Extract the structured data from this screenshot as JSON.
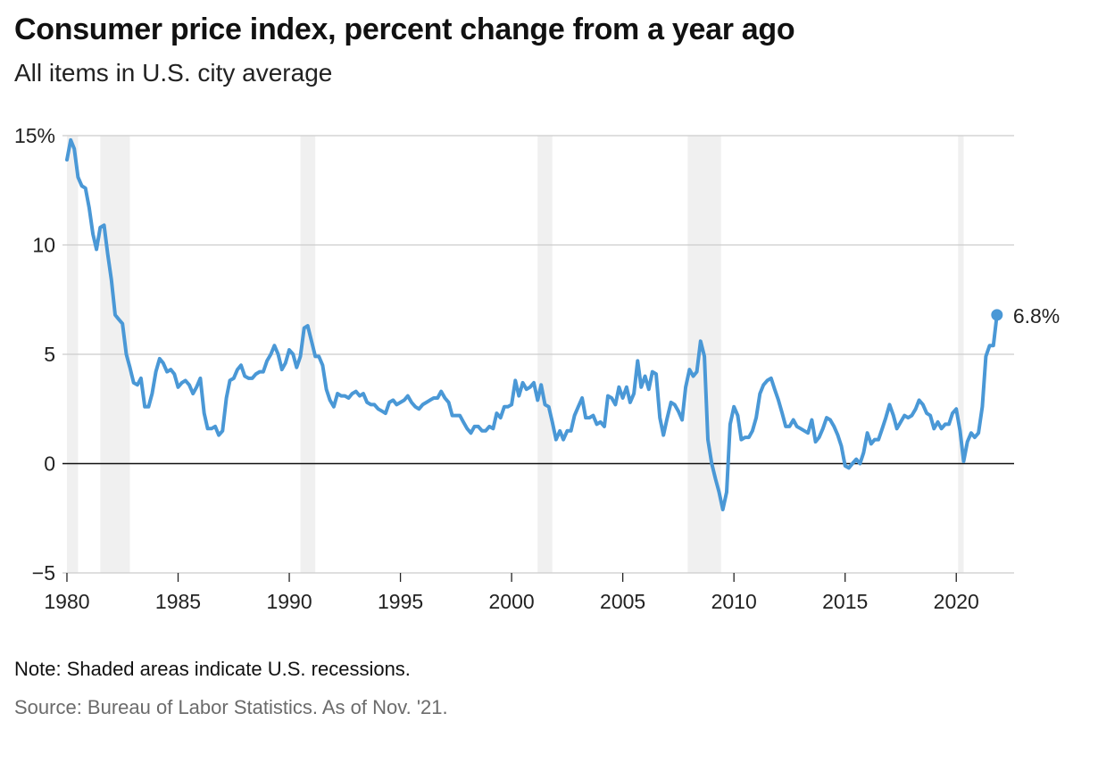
{
  "chart_data": {
    "type": "line",
    "title": "Consumer price index, percent change from a year ago",
    "subtitle": "All items in U.S. city average",
    "xlabel": "",
    "ylabel": "",
    "xlim": [
      1979.8,
      2022.6
    ],
    "ylim": [
      -5,
      15
    ],
    "x_ticks": [
      1980,
      1985,
      1990,
      1995,
      2000,
      2005,
      2010,
      2015,
      2020
    ],
    "y_ticks": [
      -5,
      0,
      5,
      10,
      15
    ],
    "y_tick_labels": [
      "−5",
      "0",
      "5",
      "10",
      "15%"
    ],
    "recessions": [
      [
        1980.0,
        1980.5
      ],
      [
        1981.5,
        1982.83
      ],
      [
        1990.5,
        1991.17
      ],
      [
        2001.17,
        2001.83
      ],
      [
        2007.92,
        2009.42
      ],
      [
        2020.08,
        2020.33
      ]
    ],
    "series": [
      {
        "name": "CPI, all items, U.S. city average, % change from a year ago",
        "color": "#4a98d6",
        "points": [
          [
            1980.0,
            13.9
          ],
          [
            1980.17,
            14.8
          ],
          [
            1980.33,
            14.4
          ],
          [
            1980.5,
            13.1
          ],
          [
            1980.67,
            12.7
          ],
          [
            1980.83,
            12.6
          ],
          [
            1981.0,
            11.7
          ],
          [
            1981.17,
            10.5
          ],
          [
            1981.33,
            9.8
          ],
          [
            1981.5,
            10.8
          ],
          [
            1981.67,
            10.9
          ],
          [
            1981.83,
            9.6
          ],
          [
            1982.0,
            8.4
          ],
          [
            1982.17,
            6.8
          ],
          [
            1982.33,
            6.6
          ],
          [
            1982.5,
            6.4
          ],
          [
            1982.67,
            5.0
          ],
          [
            1982.83,
            4.4
          ],
          [
            1983.0,
            3.7
          ],
          [
            1983.17,
            3.6
          ],
          [
            1983.33,
            3.9
          ],
          [
            1983.5,
            2.6
          ],
          [
            1983.67,
            2.6
          ],
          [
            1983.83,
            3.2
          ],
          [
            1984.0,
            4.2
          ],
          [
            1984.17,
            4.8
          ],
          [
            1984.33,
            4.6
          ],
          [
            1984.5,
            4.2
          ],
          [
            1984.67,
            4.3
          ],
          [
            1984.83,
            4.1
          ],
          [
            1985.0,
            3.5
          ],
          [
            1985.17,
            3.7
          ],
          [
            1985.33,
            3.8
          ],
          [
            1985.5,
            3.6
          ],
          [
            1985.67,
            3.2
          ],
          [
            1985.83,
            3.5
          ],
          [
            1986.0,
            3.9
          ],
          [
            1986.17,
            2.3
          ],
          [
            1986.33,
            1.6
          ],
          [
            1986.5,
            1.6
          ],
          [
            1986.67,
            1.7
          ],
          [
            1986.83,
            1.3
          ],
          [
            1987.0,
            1.5
          ],
          [
            1987.17,
            3.0
          ],
          [
            1987.33,
            3.8
          ],
          [
            1987.5,
            3.9
          ],
          [
            1987.67,
            4.3
          ],
          [
            1987.83,
            4.5
          ],
          [
            1988.0,
            4.0
          ],
          [
            1988.17,
            3.9
          ],
          [
            1988.33,
            3.9
          ],
          [
            1988.5,
            4.1
          ],
          [
            1988.67,
            4.2
          ],
          [
            1988.83,
            4.2
          ],
          [
            1989.0,
            4.7
          ],
          [
            1989.17,
            5.0
          ],
          [
            1989.33,
            5.4
          ],
          [
            1989.5,
            5.0
          ],
          [
            1989.67,
            4.3
          ],
          [
            1989.83,
            4.6
          ],
          [
            1990.0,
            5.2
          ],
          [
            1990.17,
            5.0
          ],
          [
            1990.33,
            4.4
          ],
          [
            1990.5,
            4.9
          ],
          [
            1990.67,
            6.2
          ],
          [
            1990.83,
            6.3
          ],
          [
            1991.0,
            5.6
          ],
          [
            1991.17,
            4.9
          ],
          [
            1991.33,
            4.9
          ],
          [
            1991.5,
            4.5
          ],
          [
            1991.67,
            3.4
          ],
          [
            1991.83,
            2.9
          ],
          [
            1992.0,
            2.6
          ],
          [
            1992.17,
            3.2
          ],
          [
            1992.33,
            3.1
          ],
          [
            1992.5,
            3.1
          ],
          [
            1992.67,
            3.0
          ],
          [
            1992.83,
            3.2
          ],
          [
            1993.0,
            3.3
          ],
          [
            1993.17,
            3.1
          ],
          [
            1993.33,
            3.2
          ],
          [
            1993.5,
            2.8
          ],
          [
            1993.67,
            2.7
          ],
          [
            1993.83,
            2.7
          ],
          [
            1994.0,
            2.5
          ],
          [
            1994.17,
            2.4
          ],
          [
            1994.33,
            2.3
          ],
          [
            1994.5,
            2.8
          ],
          [
            1994.67,
            2.9
          ],
          [
            1994.83,
            2.7
          ],
          [
            1995.0,
            2.8
          ],
          [
            1995.17,
            2.9
          ],
          [
            1995.33,
            3.1
          ],
          [
            1995.5,
            2.8
          ],
          [
            1995.67,
            2.6
          ],
          [
            1995.83,
            2.5
          ],
          [
            1996.0,
            2.7
          ],
          [
            1996.17,
            2.8
          ],
          [
            1996.33,
            2.9
          ],
          [
            1996.5,
            3.0
          ],
          [
            1996.67,
            3.0
          ],
          [
            1996.83,
            3.3
          ],
          [
            1997.0,
            3.0
          ],
          [
            1997.17,
            2.8
          ],
          [
            1997.33,
            2.2
          ],
          [
            1997.5,
            2.2
          ],
          [
            1997.67,
            2.2
          ],
          [
            1997.83,
            1.9
          ],
          [
            1998.0,
            1.6
          ],
          [
            1998.17,
            1.4
          ],
          [
            1998.33,
            1.7
          ],
          [
            1998.5,
            1.7
          ],
          [
            1998.67,
            1.5
          ],
          [
            1998.83,
            1.5
          ],
          [
            1999.0,
            1.7
          ],
          [
            1999.17,
            1.6
          ],
          [
            1999.33,
            2.3
          ],
          [
            1999.5,
            2.1
          ],
          [
            1999.67,
            2.6
          ],
          [
            1999.83,
            2.6
          ],
          [
            2000.0,
            2.7
          ],
          [
            2000.17,
            3.8
          ],
          [
            2000.33,
            3.1
          ],
          [
            2000.5,
            3.7
          ],
          [
            2000.67,
            3.4
          ],
          [
            2000.83,
            3.5
          ],
          [
            2001.0,
            3.7
          ],
          [
            2001.17,
            2.9
          ],
          [
            2001.33,
            3.6
          ],
          [
            2001.5,
            2.7
          ],
          [
            2001.67,
            2.6
          ],
          [
            2001.83,
            1.9
          ],
          [
            2002.0,
            1.1
          ],
          [
            2002.17,
            1.5
          ],
          [
            2002.33,
            1.1
          ],
          [
            2002.5,
            1.5
          ],
          [
            2002.67,
            1.5
          ],
          [
            2002.83,
            2.2
          ],
          [
            2003.0,
            2.6
          ],
          [
            2003.17,
            3.0
          ],
          [
            2003.33,
            2.1
          ],
          [
            2003.5,
            2.1
          ],
          [
            2003.67,
            2.2
          ],
          [
            2003.83,
            1.8
          ],
          [
            2004.0,
            1.9
          ],
          [
            2004.17,
            1.7
          ],
          [
            2004.33,
            3.1
          ],
          [
            2004.5,
            3.0
          ],
          [
            2004.67,
            2.7
          ],
          [
            2004.83,
            3.5
          ],
          [
            2005.0,
            3.0
          ],
          [
            2005.17,
            3.5
          ],
          [
            2005.33,
            2.8
          ],
          [
            2005.5,
            3.2
          ],
          [
            2005.67,
            4.7
          ],
          [
            2005.83,
            3.5
          ],
          [
            2006.0,
            4.0
          ],
          [
            2006.17,
            3.4
          ],
          [
            2006.33,
            4.2
          ],
          [
            2006.5,
            4.1
          ],
          [
            2006.67,
            2.1
          ],
          [
            2006.83,
            1.3
          ],
          [
            2007.0,
            2.1
          ],
          [
            2007.17,
            2.8
          ],
          [
            2007.33,
            2.7
          ],
          [
            2007.5,
            2.4
          ],
          [
            2007.67,
            2.0
          ],
          [
            2007.83,
            3.5
          ],
          [
            2008.0,
            4.3
          ],
          [
            2008.17,
            4.0
          ],
          [
            2008.33,
            4.2
          ],
          [
            2008.5,
            5.6
          ],
          [
            2008.67,
            4.9
          ],
          [
            2008.83,
            1.1
          ],
          [
            2009.0,
            0.0
          ],
          [
            2009.17,
            -0.7
          ],
          [
            2009.33,
            -1.3
          ],
          [
            2009.5,
            -2.1
          ],
          [
            2009.67,
            -1.3
          ],
          [
            2009.83,
            1.8
          ],
          [
            2010.0,
            2.6
          ],
          [
            2010.17,
            2.2
          ],
          [
            2010.33,
            1.1
          ],
          [
            2010.5,
            1.2
          ],
          [
            2010.67,
            1.2
          ],
          [
            2010.83,
            1.5
          ],
          [
            2011.0,
            2.1
          ],
          [
            2011.17,
            3.2
          ],
          [
            2011.33,
            3.6
          ],
          [
            2011.5,
            3.8
          ],
          [
            2011.67,
            3.9
          ],
          [
            2011.83,
            3.4
          ],
          [
            2012.0,
            2.9
          ],
          [
            2012.17,
            2.3
          ],
          [
            2012.33,
            1.7
          ],
          [
            2012.5,
            1.7
          ],
          [
            2012.67,
            2.0
          ],
          [
            2012.83,
            1.7
          ],
          [
            2013.0,
            1.6
          ],
          [
            2013.17,
            1.5
          ],
          [
            2013.33,
            1.4
          ],
          [
            2013.5,
            2.0
          ],
          [
            2013.67,
            1.0
          ],
          [
            2013.83,
            1.2
          ],
          [
            2014.0,
            1.6
          ],
          [
            2014.17,
            2.1
          ],
          [
            2014.33,
            2.0
          ],
          [
            2014.5,
            1.7
          ],
          [
            2014.67,
            1.3
          ],
          [
            2014.83,
            0.8
          ],
          [
            2015.0,
            -0.1
          ],
          [
            2015.17,
            -0.2
          ],
          [
            2015.33,
            0.0
          ],
          [
            2015.5,
            0.2
          ],
          [
            2015.67,
            0.0
          ],
          [
            2015.83,
            0.5
          ],
          [
            2016.0,
            1.4
          ],
          [
            2016.17,
            0.9
          ],
          [
            2016.33,
            1.1
          ],
          [
            2016.5,
            1.1
          ],
          [
            2016.67,
            1.6
          ],
          [
            2016.83,
            2.1
          ],
          [
            2017.0,
            2.7
          ],
          [
            2017.17,
            2.2
          ],
          [
            2017.33,
            1.6
          ],
          [
            2017.5,
            1.9
          ],
          [
            2017.67,
            2.2
          ],
          [
            2017.83,
            2.1
          ],
          [
            2018.0,
            2.2
          ],
          [
            2018.17,
            2.5
          ],
          [
            2018.33,
            2.9
          ],
          [
            2018.5,
            2.7
          ],
          [
            2018.67,
            2.3
          ],
          [
            2018.83,
            2.2
          ],
          [
            2019.0,
            1.6
          ],
          [
            2019.17,
            1.9
          ],
          [
            2019.33,
            1.6
          ],
          [
            2019.5,
            1.8
          ],
          [
            2019.67,
            1.8
          ],
          [
            2019.83,
            2.3
          ],
          [
            2020.0,
            2.5
          ],
          [
            2020.17,
            1.5
          ],
          [
            2020.33,
            0.1
          ],
          [
            2020.5,
            1.0
          ],
          [
            2020.67,
            1.4
          ],
          [
            2020.83,
            1.2
          ],
          [
            2021.0,
            1.4
          ],
          [
            2021.17,
            2.6
          ],
          [
            2021.33,
            4.9
          ],
          [
            2021.5,
            5.4
          ],
          [
            2021.67,
            5.4
          ],
          [
            2021.83,
            6.8
          ]
        ]
      }
    ],
    "end_label": "6.8%"
  },
  "note": "Note: Shaded areas indicate U.S. recessions.",
  "source": "Source: Bureau of Labor Statistics. As of Nov. '21."
}
